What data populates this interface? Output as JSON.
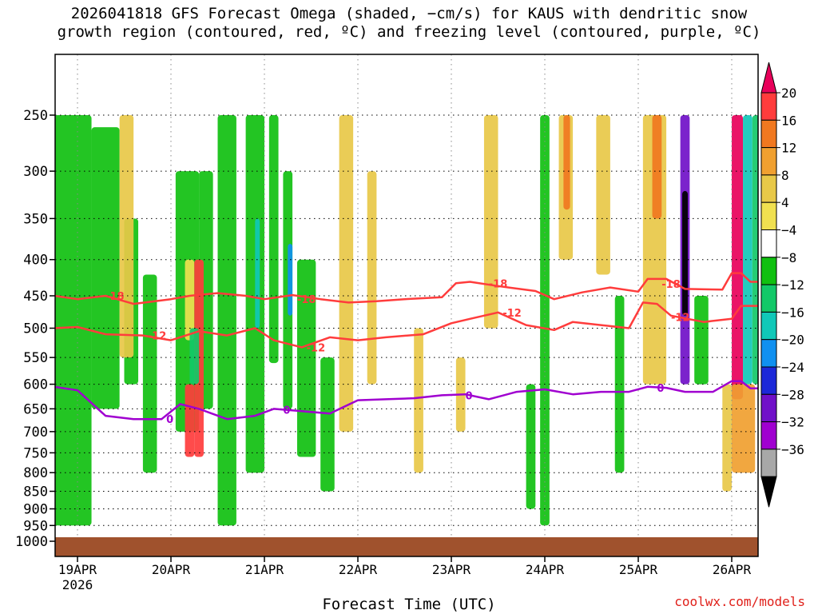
{
  "header": {
    "title_line1": "2026041818 GFS Forecast Omega (shaded, −cm/s) for KAUS with dendritic snow",
    "title_line2": "growth region (contoured, red, ºC) and freezing level (contoured, purple, ºC)"
  },
  "footer": {
    "credit": "coolwx.com/models",
    "xlabel": "Forecast Time (UTC)"
  },
  "chart_data": {
    "type": "heatmap",
    "title": "2026041818 GFS Forecast Omega (shaded, −cm/s) for KAUS with dendritic snow growth region (contoured, red, ºC) and freezing level (contoured, purple, ºC)",
    "xlabel": "Forecast Time (UTC)",
    "ylabel": "",
    "xlim": [
      0,
      7.6
    ],
    "y_levels": [
      1000,
      950,
      900,
      850,
      800,
      750,
      700,
      650,
      600,
      550,
      500,
      450,
      400,
      350,
      300,
      250
    ],
    "x_ticks": [
      {
        "value": 0.0,
        "label": "19APR",
        "sublabel": "2026"
      },
      {
        "value": 1.0,
        "label": "20APR",
        "sublabel": ""
      },
      {
        "value": 2.0,
        "label": "21APR",
        "sublabel": ""
      },
      {
        "value": 3.0,
        "label": "22APR",
        "sublabel": ""
      },
      {
        "value": 4.0,
        "label": "23APR",
        "sublabel": ""
      },
      {
        "value": 5.0,
        "label": "24APR",
        "sublabel": ""
      },
      {
        "value": 6.0,
        "label": "25APR",
        "sublabel": ""
      },
      {
        "value": 7.0,
        "label": "26APR",
        "sublabel": ""
      }
    ],
    "grid": true,
    "colorbar": {
      "labels": [
        "20",
        "16",
        "12",
        "8",
        "4",
        "−4",
        "−8",
        "−12",
        "−16",
        "−20",
        "−24",
        "−28",
        "−32",
        "−36"
      ],
      "colors": [
        "#e8005a",
        "#ff3c3c",
        "#f07820",
        "#f0a030",
        "#e8c848",
        "#f0e050",
        "#ffffff",
        "#10c010",
        "#12c868",
        "#10c8b8",
        "#1090f0",
        "#1c28d8",
        "#7010c8",
        "#a000d0",
        "#a8a8a8",
        "#000000"
      ]
    },
    "terrain_color": "#a0522d",
    "series": [
      {
        "name": "−18",
        "color": "#ff3c3c",
        "points": [
          [
            -0.25,
            450
          ],
          [
            0.0,
            455
          ],
          [
            0.3,
            450
          ],
          [
            0.6,
            462
          ],
          [
            1.0,
            455
          ],
          [
            1.2,
            450
          ],
          [
            1.5,
            446
          ],
          [
            1.8,
            450
          ],
          [
            2.0,
            455
          ],
          [
            2.3,
            449
          ],
          [
            2.6,
            455
          ],
          [
            2.9,
            460
          ],
          [
            3.2,
            458
          ],
          [
            3.5,
            455
          ],
          [
            3.9,
            452
          ],
          [
            4.05,
            432
          ],
          [
            4.2,
            430
          ],
          [
            4.5,
            436
          ],
          [
            4.9,
            443
          ],
          [
            5.1,
            455
          ],
          [
            5.4,
            445
          ],
          [
            5.7,
            438
          ],
          [
            6.0,
            444
          ],
          [
            6.1,
            426
          ],
          [
            6.3,
            426
          ],
          [
            6.5,
            440
          ],
          [
            6.9,
            441
          ],
          [
            7.0,
            418
          ],
          [
            7.1,
            418
          ],
          [
            7.2,
            430
          ],
          [
            7.3,
            430
          ]
        ],
        "labels": [
          {
            "x": 0.3,
            "y": 450,
            "text": "-18"
          },
          {
            "x": 2.35,
            "y": 455,
            "text": "-18"
          },
          {
            "x": 4.4,
            "y": 432,
            "text": "-18"
          },
          {
            "x": 6.25,
            "y": 433,
            "text": "-18"
          }
        ]
      },
      {
        "name": "−12",
        "color": "#ff3c3c",
        "points": [
          [
            -0.25,
            500
          ],
          [
            0.0,
            498
          ],
          [
            0.3,
            510
          ],
          [
            0.7,
            512
          ],
          [
            1.0,
            520
          ],
          [
            1.3,
            505
          ],
          [
            1.6,
            512
          ],
          [
            1.9,
            500
          ],
          [
            2.1,
            520
          ],
          [
            2.4,
            532
          ],
          [
            2.7,
            515
          ],
          [
            3.0,
            520
          ],
          [
            3.3,
            515
          ],
          [
            3.7,
            510
          ],
          [
            4.0,
            492
          ],
          [
            4.2,
            485
          ],
          [
            4.5,
            475
          ],
          [
            4.8,
            495
          ],
          [
            5.1,
            503
          ],
          [
            5.3,
            490
          ],
          [
            5.6,
            495
          ],
          [
            5.9,
            500
          ],
          [
            6.05,
            460
          ],
          [
            6.2,
            462
          ],
          [
            6.35,
            480
          ],
          [
            6.7,
            490
          ],
          [
            7.0,
            485
          ],
          [
            7.1,
            465
          ],
          [
            7.3,
            465
          ]
        ],
        "labels": [
          {
            "x": 0.75,
            "y": 512,
            "text": "-12"
          },
          {
            "x": 2.45,
            "y": 532,
            "text": "-12"
          },
          {
            "x": 4.55,
            "y": 475,
            "text": "-12"
          },
          {
            "x": 6.35,
            "y": 482,
            "text": "-12"
          }
        ]
      },
      {
        "name": "0",
        "color": "#a000d0",
        "points": [
          [
            -0.25,
            605
          ],
          [
            0.0,
            612
          ],
          [
            0.3,
            665
          ],
          [
            0.6,
            672
          ],
          [
            0.9,
            672
          ],
          [
            1.1,
            640
          ],
          [
            1.3,
            650
          ],
          [
            1.6,
            672
          ],
          [
            1.9,
            665
          ],
          [
            2.1,
            650
          ],
          [
            2.4,
            655
          ],
          [
            2.7,
            660
          ],
          [
            3.0,
            632
          ],
          [
            3.3,
            630
          ],
          [
            3.6,
            628
          ],
          [
            3.9,
            622
          ],
          [
            4.15,
            620
          ],
          [
            4.4,
            630
          ],
          [
            4.7,
            615
          ],
          [
            5.0,
            610
          ],
          [
            5.3,
            620
          ],
          [
            5.6,
            615
          ],
          [
            5.9,
            615
          ],
          [
            6.1,
            605
          ],
          [
            6.3,
            607
          ],
          [
            6.5,
            615
          ],
          [
            6.8,
            615
          ],
          [
            7.0,
            594
          ],
          [
            7.1,
            594
          ],
          [
            7.2,
            608
          ],
          [
            7.3,
            608
          ]
        ],
        "labels": [
          {
            "x": 0.95,
            "y": 672,
            "text": "0"
          },
          {
            "x": 2.2,
            "y": 652,
            "text": "0"
          },
          {
            "x": 4.15,
            "y": 622,
            "text": "0"
          },
          {
            "x": 6.2,
            "y": 607,
            "text": "0"
          }
        ]
      }
    ]
  }
}
